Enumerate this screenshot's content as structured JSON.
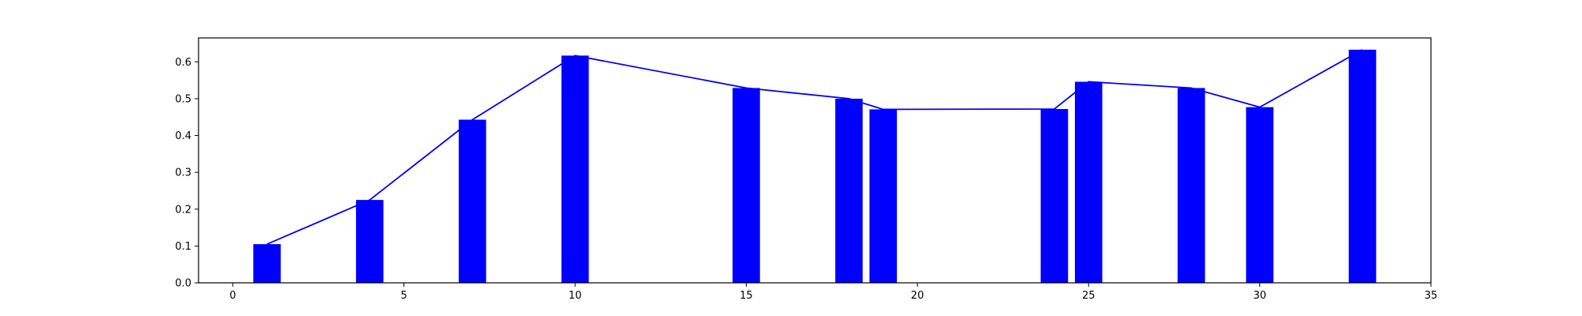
{
  "chart_data": {
    "type": "bar",
    "title": "",
    "xlabel": "",
    "ylabel": "",
    "xlim": [
      -1,
      35
    ],
    "ylim": [
      0,
      0.665
    ],
    "xticks": [
      0,
      5,
      10,
      15,
      20,
      25,
      30,
      35
    ],
    "yticks": [
      0.0,
      0.1,
      0.2,
      0.3,
      0.4,
      0.5,
      0.6
    ],
    "xtick_labels": [
      "0",
      "5",
      "10",
      "15",
      "20",
      "25",
      "30",
      "35"
    ],
    "ytick_labels": [
      "0.0",
      "0.1",
      "0.2",
      "0.3",
      "0.4",
      "0.5",
      "0.6"
    ],
    "bar_width": 0.8,
    "grid": false,
    "colors": {
      "bars": "#0000ff",
      "line": "#0000ff",
      "axes": "#000000"
    },
    "series": [
      {
        "type": "bar",
        "x": [
          1,
          4,
          7,
          10,
          15,
          18,
          19,
          24,
          25,
          28,
          30,
          33
        ],
        "values": [
          0.105,
          0.225,
          0.443,
          0.617,
          0.529,
          0.5,
          0.471,
          0.472,
          0.546,
          0.529,
          0.477,
          0.633
        ]
      },
      {
        "type": "line",
        "x": [
          1,
          4,
          7,
          10,
          15,
          18,
          19,
          24,
          25,
          28,
          30,
          33
        ],
        "values": [
          0.105,
          0.225,
          0.443,
          0.617,
          0.529,
          0.5,
          0.471,
          0.472,
          0.546,
          0.529,
          0.477,
          0.633
        ]
      }
    ]
  }
}
